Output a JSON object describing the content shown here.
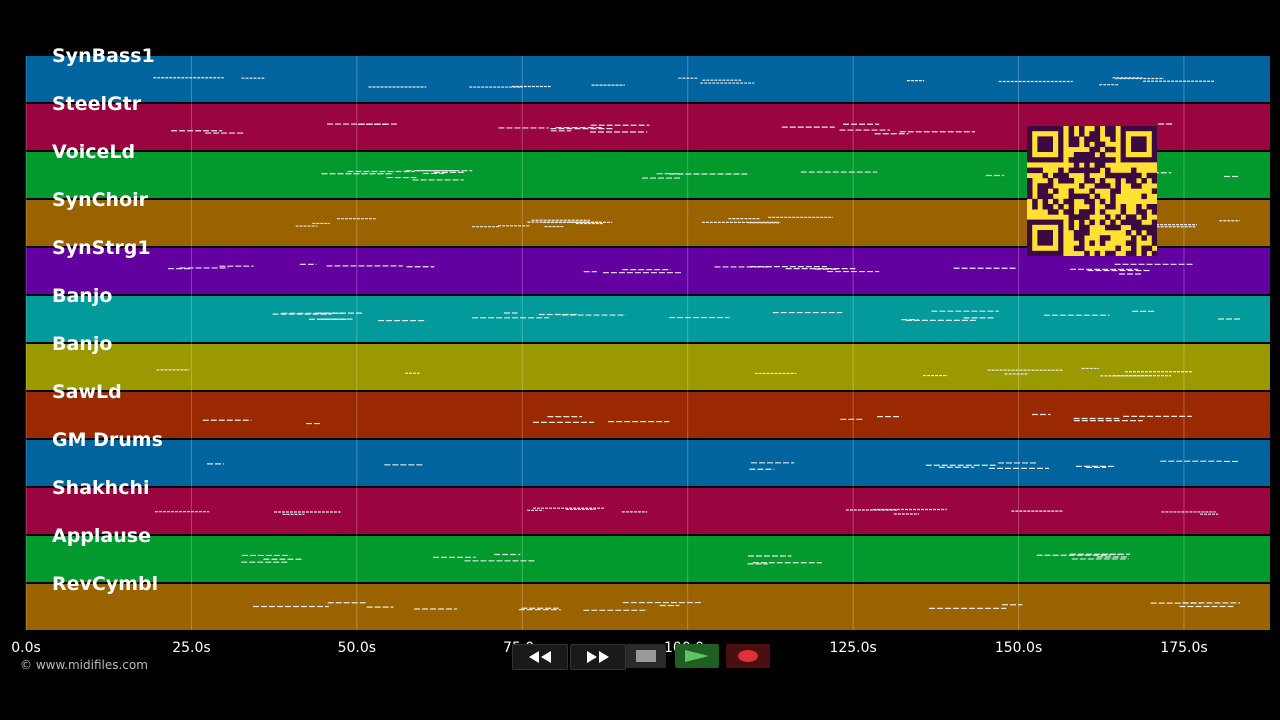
{
  "tracks": [
    {
      "name": "SynBass1",
      "color": "#02649e"
    },
    {
      "name": "SteelGtr",
      "color": "#9a0540"
    },
    {
      "name": "VoiceLd",
      "color": "#02992d"
    },
    {
      "name": "SynChoir",
      "color": "#9a6300"
    },
    {
      "name": "SynStrg1",
      "color": "#6200a0"
    },
    {
      "name": "Banjo",
      "color": "#029a9a"
    },
    {
      "name": "Banjo",
      "color": "#9a9a00"
    },
    {
      "name": "SawLd",
      "color": "#9a2800"
    },
    {
      "name": "GM Drums",
      "color": "#02649e"
    },
    {
      "name": "Shakhchi",
      "color": "#9a0540"
    },
    {
      "name": "Applause",
      "color": "#02992d"
    },
    {
      "name": "RevCymbl",
      "color": "#9a6300"
    }
  ],
  "time_axis": {
    "ticks": [
      "0.0s",
      "25.0s",
      "50.0s",
      "75.0s",
      "100.0s",
      "125.0s",
      "150.0s",
      "175.0s"
    ],
    "tick_values": [
      0,
      25,
      50,
      75,
      100,
      125,
      150,
      175
    ],
    "max": 188
  },
  "copyright": "© www.midifiles.com",
  "transport": {
    "rewind_icon": "rewind-icon",
    "forward_icon": "fast-forward-icon",
    "stop_icon": "stop-icon",
    "play_icon": "play-icon",
    "record_icon": "record-icon"
  },
  "qr_color": "#ffe033"
}
